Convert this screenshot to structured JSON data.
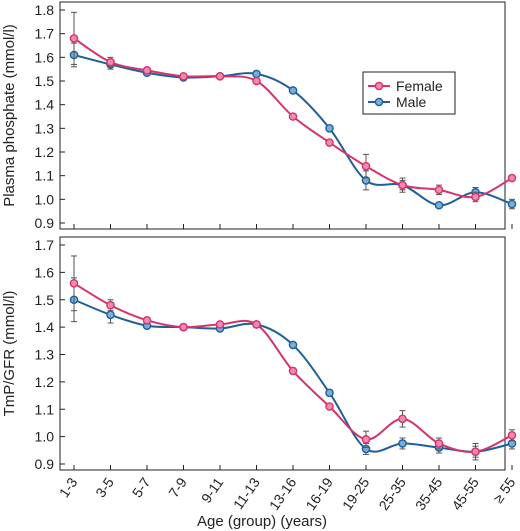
{
  "colors": {
    "female": "#d6336c",
    "male": "#1f5f99",
    "female_fill": "#f08ab0",
    "male_fill": "#79aedb",
    "axis": "#222222",
    "error": "#555555"
  },
  "chart_data": [
    {
      "type": "line",
      "ylabel": "Plasma phosphate (mmol/l)",
      "ylim": [
        0.9,
        1.8
      ],
      "yticks": [
        "0.9",
        "1.0",
        "1.1",
        "1.2",
        "1.3",
        "1.4",
        "1.5",
        "1.6",
        "1.7",
        "1.8"
      ],
      "legend": {
        "position": "right",
        "entries": [
          "Female",
          "Male"
        ]
      },
      "series": [
        {
          "name": "Female",
          "values": [
            1.68,
            1.58,
            1.545,
            1.52,
            1.52,
            1.5,
            1.35,
            1.24,
            1.14,
            1.06,
            1.04,
            1.01,
            1.09
          ],
          "errors": [
            0.11,
            0.02,
            0.01,
            0.01,
            0.01,
            0.01,
            0.01,
            0.01,
            0.05,
            0.03,
            0.02,
            0.02,
            0.01
          ]
        },
        {
          "name": "Male",
          "values": [
            1.61,
            1.57,
            1.535,
            1.515,
            1.52,
            1.53,
            1.46,
            1.3,
            1.08,
            1.06,
            0.975,
            1.03,
            0.98
          ],
          "errors": [
            0.05,
            0.02,
            0.01,
            0.01,
            0.01,
            0.01,
            0.01,
            0.01,
            0.04,
            0.02,
            0.01,
            0.02,
            0.02
          ]
        }
      ]
    },
    {
      "type": "line",
      "xlabel": "Age (group) (years)",
      "ylabel": "TmP/GFR (mmol/l)",
      "ylim": [
        0.9,
        1.7
      ],
      "yticks": [
        "0.9",
        "1.0",
        "1.1",
        "1.2",
        "1.3",
        "1.4",
        "1.5",
        "1.6",
        "1.7"
      ],
      "categories": [
        "1-3",
        "3-5",
        "5-7",
        "7-9",
        "9-11",
        "11-13",
        "13-16",
        "16-19",
        "19-25",
        "25-35",
        "35-45",
        "45-55",
        "≥ 55"
      ],
      "series": [
        {
          "name": "Female",
          "values": [
            1.56,
            1.48,
            1.425,
            1.4,
            1.41,
            1.41,
            1.24,
            1.11,
            0.99,
            1.065,
            0.975,
            0.945,
            1.005
          ],
          "errors": [
            0.1,
            0.02,
            0.01,
            0.01,
            0.01,
            0.01,
            0.01,
            0.01,
            0.03,
            0.03,
            0.02,
            0.02,
            0.02
          ]
        },
        {
          "name": "Male",
          "values": [
            1.5,
            1.445,
            1.405,
            1.4,
            1.395,
            1.41,
            1.335,
            1.16,
            0.955,
            0.975,
            0.96,
            0.945,
            0.975
          ],
          "errors": [
            0.08,
            0.03,
            0.01,
            0.01,
            0.01,
            0.01,
            0.01,
            0.01,
            0.02,
            0.02,
            0.02,
            0.03,
            0.02
          ]
        }
      ]
    }
  ]
}
